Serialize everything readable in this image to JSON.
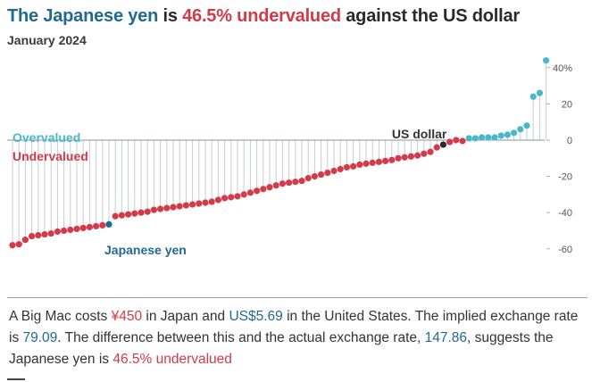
{
  "header": {
    "title_part1": "The Japanese yen",
    "title_part2": " is ",
    "title_part3": "46.5% undervalued",
    "title_part4": " against the US dollar",
    "subtitle": "January 2024"
  },
  "colors": {
    "overvalued": "#4bb8c9",
    "undervalued": "#d33a4a",
    "highlight": "#1f6b8f",
    "base": "#2a2a2a",
    "stem": "#c8ccd0",
    "zero": "#8b949c"
  },
  "chart_data": {
    "type": "lollipop",
    "title": "The Japanese yen is 46.5% undervalued against the US dollar",
    "subtitle": "January 2024",
    "ylim": [
      -65,
      45
    ],
    "yticks": [
      40,
      20,
      0,
      -20,
      -40,
      -60
    ],
    "ytick_labels": [
      "40%",
      "20",
      "0",
      "-20",
      "-40",
      "-60"
    ],
    "legend": {
      "overvalued": "Overvalued",
      "undervalued": "Undervalued"
    },
    "annotations": {
      "japan": "Japanese yen",
      "us": "US dollar"
    },
    "highlight_index": 15,
    "base_index": 67,
    "values": [
      -58,
      -57.5,
      -55,
      -53,
      -52.5,
      -52,
      -51.5,
      -50.5,
      -50,
      -49.5,
      -49,
      -48.5,
      -48,
      -47.5,
      -47,
      -46.5,
      -42,
      -41.5,
      -41,
      -40.5,
      -40,
      -39.5,
      -38.5,
      -38,
      -37.5,
      -37,
      -36.5,
      -36,
      -35.5,
      -35,
      -34.5,
      -34,
      -33,
      -32,
      -31.5,
      -31,
      -30,
      -29,
      -28,
      -27,
      -26,
      -25,
      -24,
      -23.5,
      -23,
      -22.5,
      -21,
      -20,
      -19,
      -18,
      -17,
      -16,
      -15,
      -14.5,
      -13.5,
      -13,
      -12.5,
      -12,
      -11.5,
      -11,
      -10,
      -9.5,
      -9,
      -8.5,
      -7.5,
      -6.5,
      -4,
      -2.5,
      -1,
      0,
      -0.5,
      1,
      1,
      1.5,
      1.5,
      1.5,
      2.5,
      3,
      4,
      6,
      8,
      24,
      26,
      44
    ]
  },
  "caption": {
    "p1": "A Big Mac costs ",
    "price_local": "¥450",
    "p2": " in Japan and ",
    "price_us": "US$5.69",
    "p3": " in the United States. The implied exchange rate is ",
    "implied_rate": "79.09",
    "p4": ". The difference between this and the actual exchange rate, ",
    "actual_rate": "147.86",
    "p5": ", suggests the Japanese yen is ",
    "valuation": "46.5% undervalued"
  }
}
